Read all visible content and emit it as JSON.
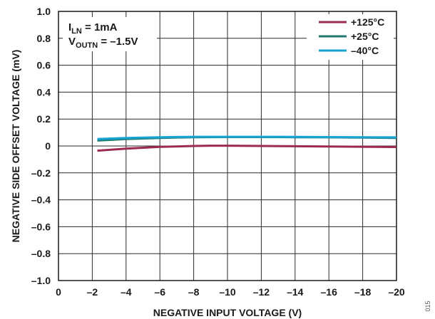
{
  "chart_data": {
    "type": "line",
    "title": "",
    "xlabel": "NEGATIVE INPUT VOLTAGE (V)",
    "ylabel": "NEGATIVE SIDE OFFSET VOLTAGE (mV)",
    "xlim": [
      0,
      -20
    ],
    "ylim": [
      -1.0,
      1.0
    ],
    "x_ticks": [
      0,
      -2,
      -4,
      -6,
      -8,
      -10,
      -12,
      -14,
      -16,
      -18,
      -20
    ],
    "x_tick_labels": [
      "0",
      "–2",
      "–4",
      "–6",
      "–8",
      "–10",
      "–12",
      "–14",
      "–16",
      "–18",
      "–20"
    ],
    "y_ticks": [
      1.0,
      0.8,
      0.6,
      0.4,
      0.2,
      0,
      -0.2,
      -0.4,
      -0.6,
      -0.8,
      -1.0
    ],
    "y_tick_labels": [
      "1.0",
      "0.8",
      "0.6",
      "0.4",
      "0.2",
      "0",
      "–0.2",
      "–0.4",
      "–0.6",
      "–0.8",
      "–1.0"
    ],
    "grid": true,
    "legend_position": "top-right",
    "annotations": {
      "line1_main": "I",
      "line1_sub": "LN",
      "line1_rest": " = 1mA",
      "line2_main": "V",
      "line2_sub": "OUTN",
      "line2_rest": " = –1.5V"
    },
    "series": [
      {
        "name": "+125°C",
        "color": "#9b2a4c",
        "x": [
          -2.3,
          -4,
          -6,
          -8,
          -9,
          -10,
          -12,
          -14,
          -16,
          -18,
          -20
        ],
        "values": [
          -0.035,
          -0.02,
          -0.007,
          0.0,
          0.002,
          0.002,
          0.0,
          -0.002,
          -0.004,
          -0.006,
          -0.008
        ]
      },
      {
        "name": "+25°C",
        "color": "#1f7a70",
        "x": [
          -2.3,
          -4,
          -6,
          -8,
          -10,
          -12,
          -14,
          -16,
          -18,
          -20
        ],
        "values": [
          0.04,
          0.052,
          0.06,
          0.065,
          0.066,
          0.066,
          0.065,
          0.064,
          0.062,
          0.06
        ]
      },
      {
        "name": "–40°C",
        "color": "#17a3d4",
        "x": [
          -2.3,
          -4,
          -6,
          -8,
          -10,
          -12,
          -14,
          -16,
          -18,
          -20
        ],
        "values": [
          0.052,
          0.06,
          0.065,
          0.068,
          0.068,
          0.068,
          0.067,
          0.066,
          0.065,
          0.064
        ]
      }
    ],
    "figure_id": "015"
  }
}
